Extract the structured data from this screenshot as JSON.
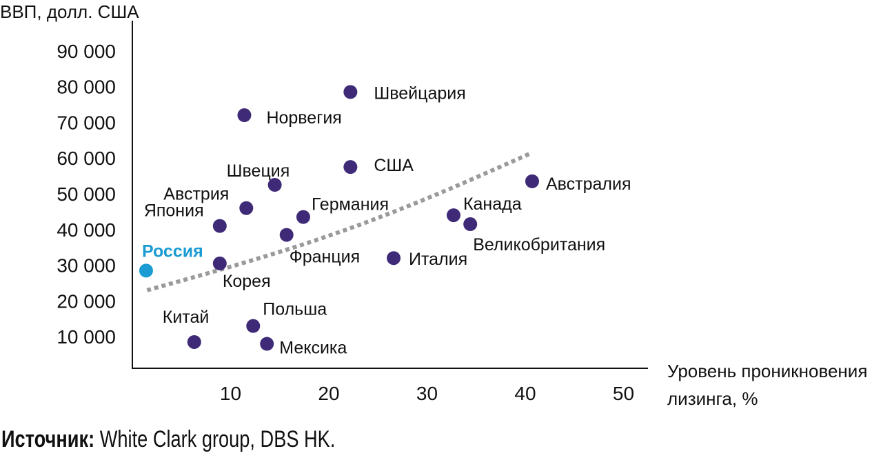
{
  "chart_data": {
    "type": "scatter",
    "ylabel": "ВВП, долл. США",
    "xlabel": "Уровень проникновения лизинга, %",
    "xlim": [
      0,
      52
    ],
    "ylim": [
      0,
      95000
    ],
    "x_ticks": [
      "10",
      "20",
      "30",
      "40",
      "50"
    ],
    "x_tick_values": [
      10,
      20,
      30,
      40,
      50
    ],
    "y_ticks": [
      "10 000",
      "20 000",
      "30 000",
      "40 000",
      "50 000",
      "60 000",
      "70 000",
      "80 000",
      "90 000"
    ],
    "y_tick_values": [
      10000,
      20000,
      30000,
      40000,
      50000,
      60000,
      70000,
      80000,
      90000
    ],
    "points": [
      {
        "label": "Россия",
        "x": 1.4,
        "y": 28500,
        "highlight": true
      },
      {
        "label": "Китай",
        "x": 6.3,
        "y": 8500
      },
      {
        "label": "Япония",
        "x": 8.9,
        "y": 41000
      },
      {
        "label": "Корея",
        "x": 8.9,
        "y": 30500
      },
      {
        "label": "Австрия",
        "x": 11.6,
        "y": 46000
      },
      {
        "label": "Норвегия",
        "x": 11.4,
        "y": 72000
      },
      {
        "label": "Польша",
        "x": 12.3,
        "y": 13000
      },
      {
        "label": "Мексика",
        "x": 13.7,
        "y": 8000
      },
      {
        "label": "Швеция",
        "x": 14.5,
        "y": 52500
      },
      {
        "label": "",
        "x": 15.7,
        "y": 38500
      },
      {
        "label": "Германия",
        "x": 17.4,
        "y": 43500
      },
      {
        "label": "Швейцария",
        "x": 22.2,
        "y": 78500
      },
      {
        "label": "США",
        "x": 22.2,
        "y": 57500
      },
      {
        "label": "Франция",
        "x": 15.7,
        "y": 38500,
        "label_only": true
      },
      {
        "label": "Италия",
        "x": 26.6,
        "y": 32000
      },
      {
        "label": "Канада",
        "x": 32.7,
        "y": 44000
      },
      {
        "label": "Великобритания",
        "x": 34.4,
        "y": 41500
      },
      {
        "label": "Австралия",
        "x": 40.7,
        "y": 53500
      }
    ],
    "trend": {
      "style": "dotted",
      "x": [
        1.5,
        10,
        20,
        30,
        40.7
      ],
      "y": [
        23000,
        29500,
        38000,
        48500,
        61500
      ]
    },
    "colors": {
      "points": "#3f2a78",
      "highlight": "#1a9bd1",
      "trend": "#9a9a9a",
      "axis": "#111111"
    },
    "grid": false
  },
  "source": {
    "label": "Источник:",
    "text": " White Clark group, DBS HK."
  }
}
